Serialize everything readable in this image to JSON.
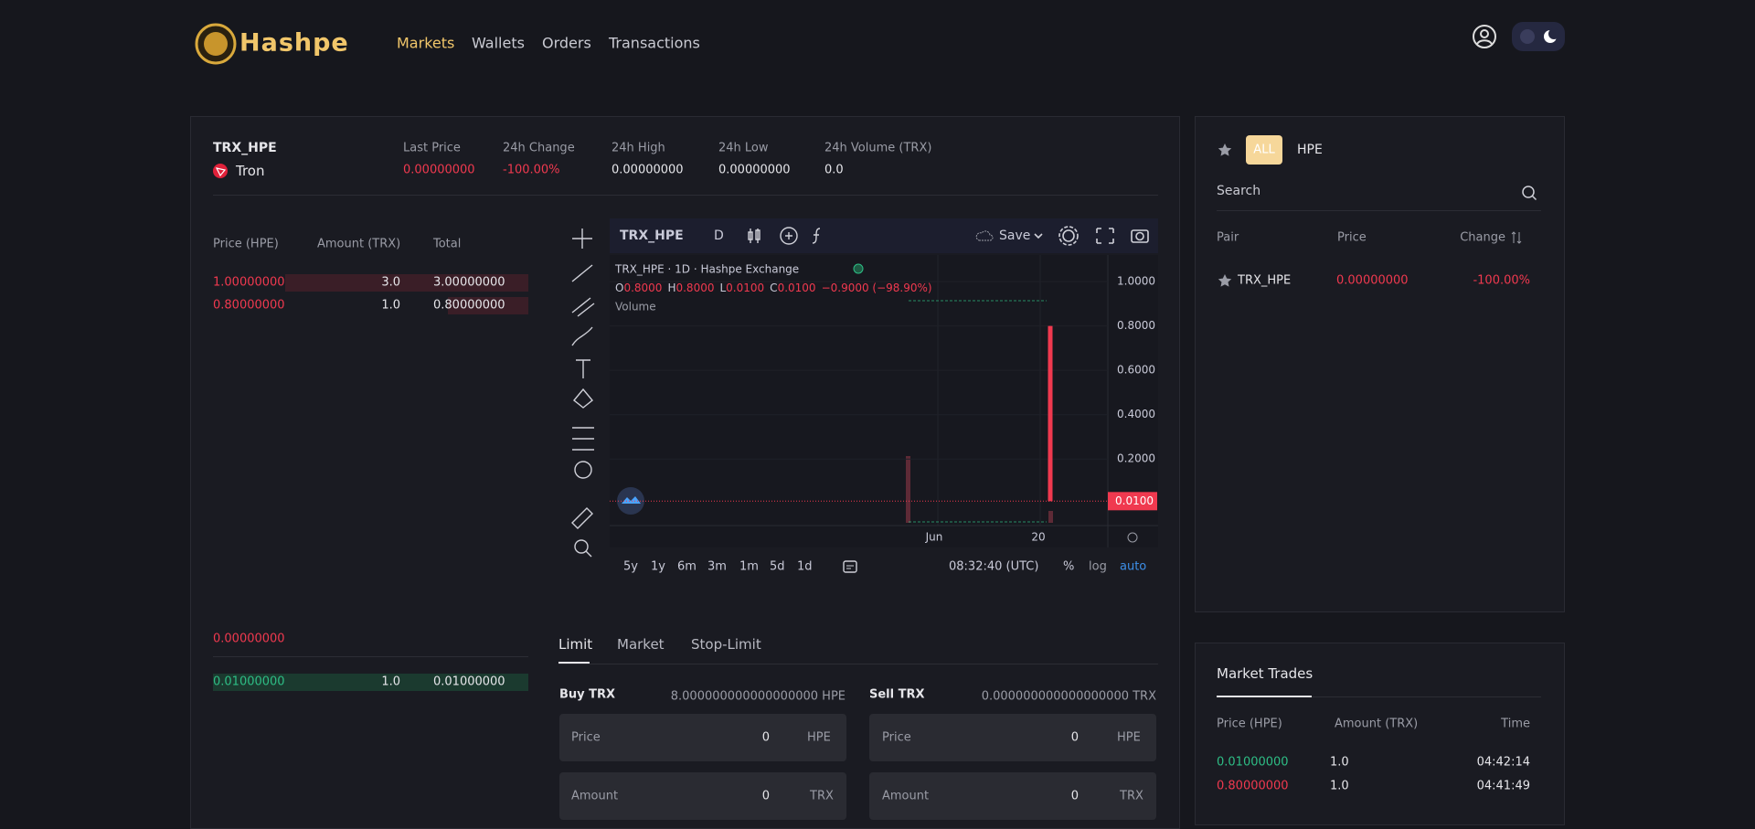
{
  "header": {
    "brand": "Hashpe",
    "nav": [
      "Markets",
      "Wallets",
      "Orders",
      "Transactions"
    ]
  },
  "ticker": {
    "pair": "TRX_HPE",
    "coin": "Tron",
    "stats": [
      {
        "label": "Last Price",
        "value": "0.00000000"
      },
      {
        "label": "24h Change",
        "value": "-100.00%"
      },
      {
        "label": "24h High",
        "value": "0.00000000"
      },
      {
        "label": "24h Low",
        "value": "0.00000000"
      },
      {
        "label": "24h Volume (TRX)",
        "value": "0.0"
      }
    ]
  },
  "order_book": {
    "headers": [
      "Price (HPE)",
      "Amount (TRX)",
      "Total"
    ],
    "asks": [
      [
        "1.00000000",
        "3.0",
        "3.00000000"
      ],
      [
        "0.80000000",
        "1.0",
        "0.80000000"
      ]
    ],
    "last_price": "0.00000000",
    "bids": [
      [
        "0.01000000",
        "1.0",
        "0.01000000"
      ]
    ]
  },
  "chart": {
    "symbol": "TRX_HPE",
    "interval": "D",
    "save": "Save",
    "legend": "TRX_HPE · 1D · Hashpe Exchange",
    "ohlc": [
      {
        "key": "O",
        "value": "0.8000"
      },
      {
        "key": "H",
        "value": "0.8000"
      },
      {
        "key": "L",
        "value": "0.0100"
      },
      {
        "key": "C",
        "value": "0.0100"
      }
    ],
    "change": "−0.9000 (−98.90%)",
    "volume": "Volume",
    "ylim": [
      -0.1,
      1.12
    ],
    "yticks": [
      {
        "value": 0.2,
        "label": "0.2000"
      },
      {
        "value": 0.4,
        "label": "0.4000"
      },
      {
        "value": 0.6,
        "label": "0.6000"
      },
      {
        "value": 0.8,
        "label": "0.8000"
      },
      {
        "value": 1,
        "label": "1.0000"
      }
    ],
    "last": {
      "value": 0.01,
      "label": "0.0100"
    },
    "candles": [
      {
        "open": 0.8,
        "high": 0.8,
        "low": 0.01,
        "close": 0.01
      }
    ],
    "xlabels": [
      "Jun",
      "20"
    ],
    "ranges": [
      "5y",
      "1y",
      "6m",
      "3m",
      "1m",
      "5d",
      "1d"
    ],
    "time": "08:32:40 (UTC)",
    "options": [
      "%",
      "log",
      "auto"
    ]
  },
  "trade_form": {
    "tabs": [
      "Limit",
      "Market",
      "Stop-Limit"
    ],
    "buy": {
      "title": "Buy TRX",
      "balance": "8.000000000000000000 HPE",
      "fields": [
        {
          "label": "Price",
          "value": "0",
          "unit": "HPE"
        },
        {
          "label": "Amount",
          "value": "0",
          "unit": "TRX"
        }
      ]
    },
    "sell": {
      "title": "Sell TRX",
      "balance": "0.000000000000000000 TRX",
      "fields": [
        {
          "label": "Price",
          "value": "0",
          "unit": "HPE"
        },
        {
          "label": "Amount",
          "value": "0",
          "unit": "TRX"
        }
      ]
    }
  },
  "markets": {
    "tabs": [
      "ALL",
      "HPE"
    ],
    "search": "Search",
    "headers": [
      "Pair",
      "Price",
      "Change"
    ],
    "rows": [
      {
        "pair": "TRX_HPE",
        "price": "0.00000000",
        "change": "-100.00%"
      }
    ]
  },
  "trades": {
    "title": "Market Trades",
    "headers": [
      "Price (HPE)",
      "Amount (TRX)",
      "Time"
    ],
    "rows": [
      [
        "0.01000000",
        "1.0",
        "04:42:14"
      ],
      [
        "0.80000000",
        "1.0",
        "04:41:49"
      ]
    ]
  }
}
